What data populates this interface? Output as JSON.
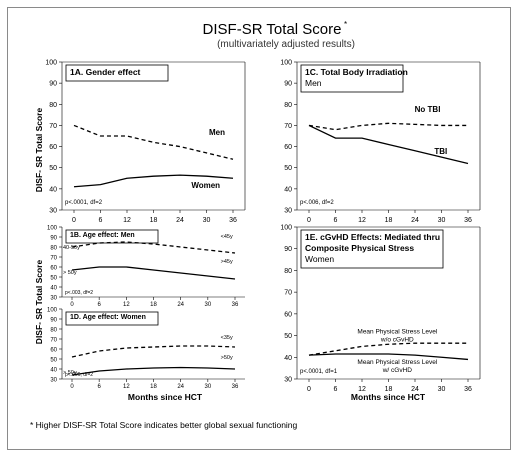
{
  "figure": {
    "title": "DISF-SR Total Score",
    "title_mark": "*",
    "subtitle": "(multivariately adjusted results)",
    "footnote": "* Higher DISF-SR Total Score indicates better global sexual functioning",
    "x_axis_label": "Months since HCT",
    "y_axis_label": "DISF- SR Total Score"
  },
  "chart_data": [
    {
      "id": "1A",
      "type": "line",
      "title": "1A. Gender effect",
      "subtitle": "",
      "stat": "p<.0001, df=2",
      "x": [
        0,
        6,
        12,
        18,
        24,
        30,
        36
      ],
      "ylim": [
        30,
        100
      ],
      "yticks": [
        30,
        40,
        50,
        60,
        70,
        80,
        90,
        100
      ],
      "xticks": [
        0,
        6,
        12,
        18,
        24,
        30,
        36
      ],
      "series": [
        {
          "name": "Men",
          "style": "dashed",
          "values": [
            70,
            65,
            65,
            62,
            60,
            57,
            54
          ]
        },
        {
          "name": "Women",
          "style": "solid",
          "values": [
            41,
            42,
            45,
            46,
            46.5,
            46,
            45
          ]
        }
      ]
    },
    {
      "id": "1C",
      "type": "line",
      "title": "1C. Total Body Irradiation",
      "subtitle": "Men",
      "stat": "p<.006, df=2",
      "x": [
        0,
        6,
        12,
        18,
        24,
        30,
        36
      ],
      "ylim": [
        30,
        100
      ],
      "yticks": [
        30,
        40,
        50,
        60,
        70,
        80,
        90,
        100
      ],
      "xticks": [
        0,
        6,
        12,
        18,
        24,
        30,
        36
      ],
      "series": [
        {
          "name": "No TBI",
          "style": "dashed",
          "values": [
            70,
            68,
            70,
            71,
            70.5,
            70,
            70
          ]
        },
        {
          "name": "TBI",
          "style": "solid",
          "values": [
            70,
            64,
            64,
            61,
            58,
            55,
            52
          ]
        }
      ]
    },
    {
      "id": "1B",
      "type": "line",
      "title": "1B. Age effect: Men",
      "subtitle": "",
      "stat": "p<.003, df=2",
      "x": [
        0,
        6,
        12,
        18,
        24,
        30,
        36
      ],
      "ylim": [
        30,
        100
      ],
      "yticks": [
        30,
        40,
        50,
        60,
        70,
        80,
        90,
        100
      ],
      "xticks": [
        0,
        6,
        12,
        18,
        24,
        30,
        36
      ],
      "series": [
        {
          "name": "45y",
          "label_prefix": "<",
          "style": "dashed",
          "values": [
            80,
            84,
            85,
            83,
            80,
            77,
            74
          ]
        },
        {
          "name": "45y",
          "label_prefix": ">",
          "style": "solid",
          "values": [
            57,
            60,
            60,
            57,
            54,
            51,
            48
          ]
        }
      ],
      "extra_labels": [
        "40-50y",
        "> 50y"
      ]
    },
    {
      "id": "1D",
      "type": "line",
      "title": "1D. Age effect: Women",
      "subtitle": "",
      "stat": "p<.006, df=2",
      "x": [
        0,
        6,
        12,
        18,
        24,
        30,
        36
      ],
      "ylim": [
        30,
        100
      ],
      "yticks": [
        30,
        40,
        50,
        60,
        70,
        80,
        90,
        100
      ],
      "xticks": [
        0,
        6,
        12,
        18,
        24,
        30,
        36
      ],
      "series": [
        {
          "name": "35y",
          "label_prefix": "<",
          "style": "dashed",
          "values": [
            52,
            58,
            61,
            62,
            63,
            63,
            62
          ]
        },
        {
          "name": "50y",
          "label_prefix": ">",
          "style": "solid",
          "values": [
            34,
            38,
            40,
            41,
            41.5,
            41,
            40
          ]
        }
      ],
      "extra_labels": [
        "> 50y"
      ]
    },
    {
      "id": "1E",
      "type": "line",
      "title": "1E. cGvHD Effects: Mediated thru",
      "title2": "Composite Physical Stress",
      "subtitle": "Women",
      "stat": "p<.0001, df=1",
      "x": [
        0,
        6,
        12,
        18,
        24,
        30,
        36
      ],
      "ylim": [
        30,
        100
      ],
      "yticks": [
        30,
        40,
        50,
        60,
        70,
        80,
        90,
        100
      ],
      "xticks": [
        0,
        6,
        12,
        18,
        24,
        30,
        36
      ],
      "series": [
        {
          "name": "Mean Physical Stress Level w/o cGvHD",
          "style": "dashed",
          "values": [
            41,
            43,
            45,
            46,
            46.5,
            46.5,
            46.5
          ]
        },
        {
          "name": "Mean Physical Stress Level w/ cGvHD",
          "style": "solid",
          "values": [
            41,
            41.5,
            41.5,
            41.5,
            41,
            40,
            39
          ]
        }
      ]
    }
  ]
}
